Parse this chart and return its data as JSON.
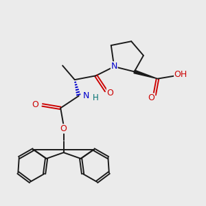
{
  "background_color": "#ebebeb",
  "atom_colors": {
    "C": "#1a1a1a",
    "N": "#0000cc",
    "O": "#cc0000",
    "H": "#007070"
  },
  "bond_color": "#1a1a1a",
  "bond_width": 1.4,
  "figsize": [
    3.0,
    3.0
  ],
  "dpi": 100,
  "xlim": [
    0,
    10
  ],
  "ylim": [
    0,
    10
  ]
}
